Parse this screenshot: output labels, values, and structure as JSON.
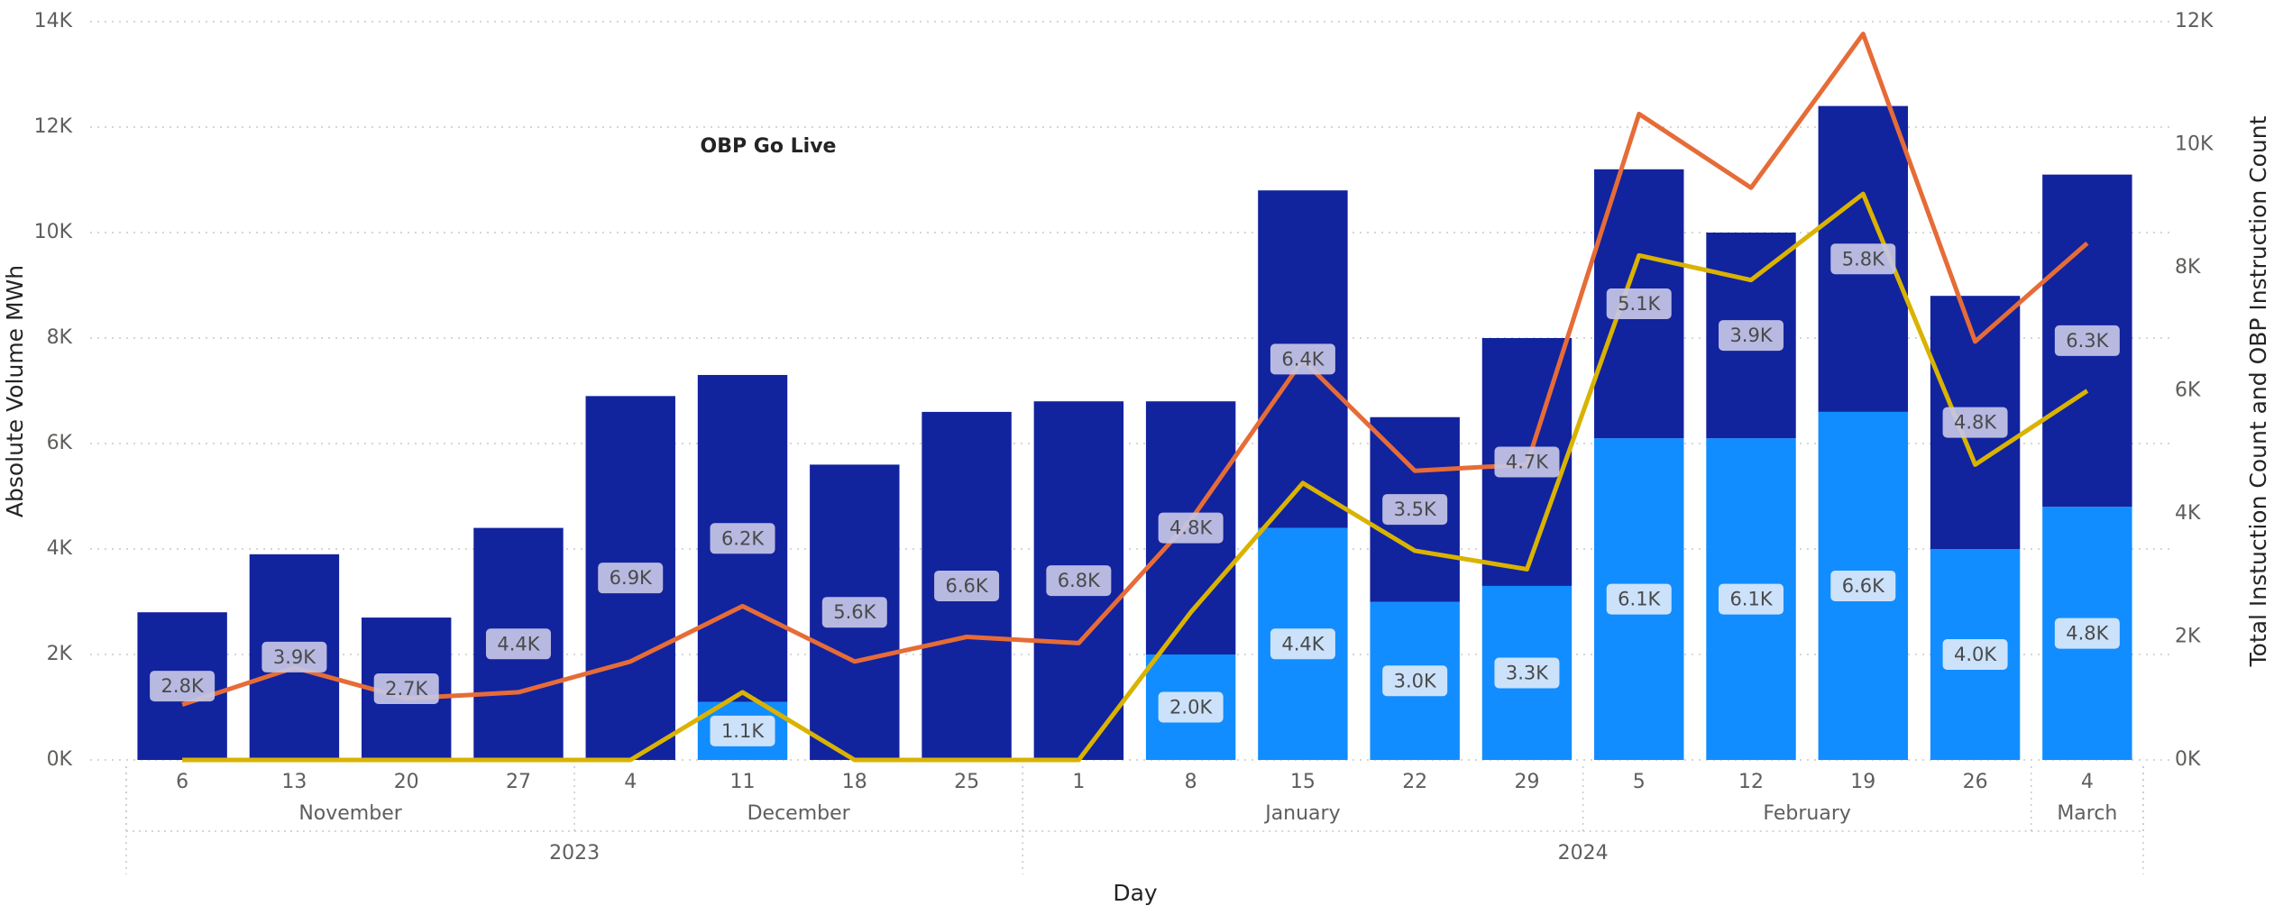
{
  "chart_data": {
    "type": "bar",
    "annotation": "OBP Go Live",
    "x_label": "Day",
    "y_label": "Absolute Volume MWh",
    "y2_label": "Total Instuction Count and OBP Instruction Count",
    "categories": [
      "6",
      "13",
      "20",
      "27",
      "4",
      "11",
      "18",
      "25",
      "1",
      "8",
      "15",
      "22",
      "29",
      "5",
      "12",
      "19",
      "26",
      "4"
    ],
    "category_months": [
      "November",
      "November",
      "November",
      "November",
      "December",
      "December",
      "December",
      "December",
      "January",
      "January",
      "January",
      "January",
      "January",
      "February",
      "February",
      "February",
      "February",
      "March"
    ],
    "category_years": [
      "2023",
      "2023",
      "2023",
      "2023",
      "2023",
      "2023",
      "2023",
      "2023",
      "2024",
      "2024",
      "2024",
      "2024",
      "2024",
      "2024",
      "2024",
      "2024",
      "2024",
      "2024"
    ],
    "ylim": [
      0,
      14000
    ],
    "yticks": [
      {
        "value": 0,
        "label": "0K"
      },
      {
        "value": 2000,
        "label": "2K"
      },
      {
        "value": 4000,
        "label": "4K"
      },
      {
        "value": 6000,
        "label": "6K"
      },
      {
        "value": 8000,
        "label": "8K"
      },
      {
        "value": 10000,
        "label": "10K"
      },
      {
        "value": 12000,
        "label": "12K"
      },
      {
        "value": 14000,
        "label": "14K"
      }
    ],
    "y2lim": [
      0,
      12000
    ],
    "y2ticks": [
      {
        "value": 0,
        "label": "0K"
      },
      {
        "value": 2000,
        "label": "2K"
      },
      {
        "value": 4000,
        "label": "4K"
      },
      {
        "value": 6000,
        "label": "6K"
      },
      {
        "value": 8000,
        "label": "8K"
      },
      {
        "value": 10000,
        "label": "10K"
      },
      {
        "value": 12000,
        "label": "12K"
      }
    ],
    "grid": true,
    "series": [
      {
        "type": "bar",
        "color": "#118dff",
        "values": [
          0,
          0,
          0,
          0,
          0,
          1100,
          0,
          0,
          0,
          2000,
          4400,
          3000,
          3300,
          6100,
          6100,
          6600,
          4000,
          4800
        ],
        "value_labels": [
          null,
          null,
          null,
          null,
          null,
          "1.1K",
          null,
          null,
          null,
          "2.0K",
          "4.4K",
          "3.0K",
          "3.3K",
          "6.1K",
          "6.1K",
          "6.6K",
          "4.0K",
          "4.8K"
        ]
      },
      {
        "type": "bar",
        "color": "#12239e",
        "values": [
          2800,
          3900,
          2700,
          4400,
          6900,
          6200,
          5600,
          6600,
          6800,
          4800,
          6400,
          3500,
          4700,
          5100,
          3900,
          5800,
          4800,
          6300
        ],
        "value_labels": [
          "2.8K",
          "3.9K",
          "2.7K",
          "4.4K",
          "6.9K",
          "6.2K",
          "5.6K",
          "6.6K",
          "6.8K",
          "4.8K",
          "6.4K",
          "3.5K",
          "4.7K",
          "5.1K",
          "3.9K",
          "5.8K",
          "4.8K",
          "6.3K"
        ]
      },
      {
        "type": "line",
        "axis": "y2",
        "color": "#e66c37",
        "values": [
          900,
          1500,
          1000,
          1100,
          1600,
          2500,
          1600,
          2000,
          1900,
          3900,
          6500,
          4700,
          4800,
          10500,
          9300,
          11800,
          6800,
          8400
        ]
      },
      {
        "type": "line",
        "axis": "y2",
        "color": "#d9b300",
        "values": [
          0,
          0,
          0,
          0,
          0,
          1100,
          0,
          0,
          0,
          2400,
          4500,
          3400,
          3100,
          8200,
          7800,
          9200,
          4800,
          6000
        ]
      }
    ]
  }
}
